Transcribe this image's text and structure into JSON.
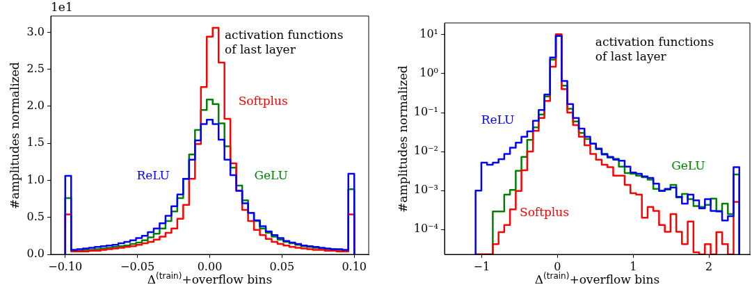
{
  "chart_data": [
    {
      "type": "histogram",
      "xlabel": "Δ$^{(train)}$+overflow bins",
      "ylabel": "#amplitudes normalized",
      "annotations": [
        "1e1",
        "activation functions of last layer"
      ],
      "bins": [
        -0.1,
        -0.09592,
        -0.09184,
        -0.08776,
        -0.08367,
        -0.07959,
        -0.07551,
        -0.07143,
        -0.06735,
        -0.06327,
        -0.05918,
        -0.0551,
        -0.05102,
        -0.04694,
        -0.04286,
        -0.03878,
        -0.03469,
        -0.03061,
        -0.02653,
        -0.02245,
        -0.01837,
        -0.01429,
        -0.0102,
        -0.00612,
        -0.00204,
        0.00204,
        0.00612,
        0.0102,
        0.01429,
        0.01837,
        0.02245,
        0.02653,
        0.03061,
        0.03469,
        0.03878,
        0.04286,
        0.04694,
        0.05102,
        0.0551,
        0.05918,
        0.06327,
        0.06735,
        0.07143,
        0.07551,
        0.07959,
        0.08367,
        0.08776,
        0.09184,
        0.09592,
        0.1
      ],
      "series": [
        {
          "name": "ReLU",
          "color": "#0000ff",
          "values": [
            1.06,
            0.06,
            0.07,
            0.08,
            0.09,
            0.1,
            0.11,
            0.12,
            0.13,
            0.15,
            0.17,
            0.19,
            0.22,
            0.25,
            0.3,
            0.35,
            0.42,
            0.52,
            0.65,
            0.81,
            1.02,
            1.28,
            1.54,
            1.76,
            1.82,
            1.76,
            1.55,
            1.28,
            1.07,
            0.86,
            0.69,
            0.56,
            0.46,
            0.38,
            0.31,
            0.26,
            0.22,
            0.18,
            0.16,
            0.14,
            0.12,
            0.11,
            0.1,
            0.09,
            0.08,
            0.07,
            0.07,
            0.06,
            1.09
          ]
        },
        {
          "name": "Softplus",
          "color": "#ff0000",
          "values": [
            0.54,
            0.04,
            0.04,
            0.04,
            0.05,
            0.05,
            0.06,
            0.07,
            0.08,
            0.09,
            0.1,
            0.11,
            0.13,
            0.15,
            0.17,
            0.2,
            0.24,
            0.29,
            0.35,
            0.48,
            0.67,
            1.02,
            1.49,
            2.26,
            2.94,
            3.06,
            2.59,
            1.83,
            1.23,
            0.86,
            0.6,
            0.45,
            0.33,
            0.26,
            0.21,
            0.17,
            0.14,
            0.12,
            0.1,
            0.09,
            0.08,
            0.07,
            0.06,
            0.06,
            0.05,
            0.05,
            0.04,
            0.04,
            0.54
          ]
        },
        {
          "name": "GeLU",
          "color": "#008000",
          "values": [
            0.76,
            0.05,
            0.05,
            0.06,
            0.06,
            0.07,
            0.08,
            0.09,
            0.1,
            0.11,
            0.12,
            0.14,
            0.16,
            0.19,
            0.23,
            0.28,
            0.35,
            0.45,
            0.58,
            0.76,
            1.02,
            1.35,
            1.68,
            1.95,
            2.09,
            2.03,
            1.77,
            1.46,
            1.17,
            0.93,
            0.73,
            0.56,
            0.45,
            0.35,
            0.29,
            0.24,
            0.2,
            0.17,
            0.15,
            0.13,
            0.11,
            0.1,
            0.09,
            0.08,
            0.07,
            0.07,
            0.06,
            0.05,
            0.88
          ]
        }
      ],
      "xlim": [
        -0.11,
        0.11
      ],
      "xticks": [
        {
          "value": -0.1,
          "label": "−0.10"
        },
        {
          "value": -0.05,
          "label": "−0.05"
        },
        {
          "value": 0,
          "label": "0.00"
        },
        {
          "value": 0.05,
          "label": "0.05"
        },
        {
          "value": 0.1,
          "label": "0.10"
        }
      ],
      "ylim": [
        0,
        3.22
      ],
      "yticks": [
        {
          "value": 0,
          "label": "0.0"
        },
        {
          "value": 0.5,
          "label": "0.5"
        },
        {
          "value": 1,
          "label": "1.0"
        },
        {
          "value": 1.5,
          "label": "1.5"
        },
        {
          "value": 2,
          "label": "2.0"
        },
        {
          "value": 2.5,
          "label": "2.5"
        },
        {
          "value": 3,
          "label": "3.0"
        }
      ],
      "legend": false
    },
    {
      "type": "histogram",
      "xlabel": "Δ$^{(train)}$+overflow bins",
      "ylabel": "#amplitudes normalized",
      "annotations": [
        "activation functions of last layer"
      ],
      "bins": [
        -1.08,
        -1.004,
        -0.929,
        -0.853,
        -0.777,
        -0.702,
        -0.626,
        -0.55,
        -0.475,
        -0.399,
        -0.323,
        -0.248,
        -0.172,
        -0.097,
        -0.021,
        0.055,
        0.13,
        0.206,
        0.282,
        0.357,
        0.433,
        0.509,
        0.584,
        0.66,
        0.736,
        0.811,
        0.887,
        0.963,
        1.038,
        1.114,
        1.19,
        1.265,
        1.341,
        1.417,
        1.492,
        1.568,
        1.643,
        1.719,
        1.795,
        1.87,
        1.946,
        2.022,
        2.097,
        2.173,
        2.249,
        2.324,
        2.4
      ],
      "series": [
        {
          "name": "ReLU",
          "color": "#0000ff",
          "values": [
            0.001,
            0.0052,
            0.0046,
            0.0052,
            0.0064,
            0.0087,
            0.0126,
            0.017,
            0.024,
            0.033,
            0.062,
            0.117,
            0.29,
            2.6,
            9.3,
            0.65,
            0.166,
            0.073,
            0.039,
            0.024,
            0.016,
            0.012,
            0.0084,
            0.0073,
            0.0062,
            0.0058,
            0.0041,
            0.0029,
            0.0027,
            0.0023,
            0.0021,
            0.0015,
            0.00098,
            0.0011,
            0.0012,
            0.00069,
            0.00046,
            0.00079,
            0.00056,
            0.00035,
            0.0006,
            0.0003,
            0.00029,
            0.00017,
            0.00022,
            0.004
          ]
        },
        {
          "name": "Softplus",
          "color": "#ff0000",
          "values": [
            null,
            null,
            null,
            4.2e-05,
            8.6e-05,
            0.00013,
            0.00033,
            0.00098,
            0.0033,
            0.01,
            0.034,
            0.073,
            0.2,
            1.5,
            10.3,
            0.4,
            0.1,
            0.048,
            0.024,
            0.0145,
            0.0087,
            0.0062,
            0.0046,
            0.004,
            0.0024,
            0.0024,
            0.0014,
            0.00085,
            0.00079,
            0.0002,
            0.00038,
            0.0003,
            0.00013,
            8.7e-05,
            0.00025,
            8.7e-05,
            4.2e-05,
            0.00016,
            2.6e-05,
            null,
            4.2e-05,
            null,
            8.6e-05,
            4.2e-05,
            null,
            0.00051
          ]
        },
        {
          "name": "GeLU",
          "color": "#008000",
          "values": [
            null,
            null,
            null,
            0.00029,
            0.00029,
            0.00079,
            0.00104,
            0.0032,
            0.0073,
            0.02,
            0.042,
            0.089,
            0.26,
            2.3,
            9.7,
            0.49,
            0.126,
            0.059,
            0.03,
            0.021,
            0.016,
            0.0115,
            0.0088,
            0.007,
            0.0065,
            0.0041,
            0.0028,
            0.0027,
            0.0024,
            0.0022,
            0.0019,
            0.0011,
            0.001,
            0.00106,
            0.0014,
            0.00067,
            0.00082,
            0.0006,
            0.0004,
            0.00038,
            0.00043,
            0.00062,
            0.0003,
            0.00046,
            0.00025,
            0.0026
          ]
        }
      ],
      "xlim": [
        -1.49,
        2.54
      ],
      "xticks": [
        {
          "value": -1,
          "label": "−1"
        },
        0,
        1,
        2
      ],
      "ylim": [
        2.3e-05,
        20
      ],
      "yticks": [
        {
          "value": 10,
          "label": "10¹"
        },
        {
          "value": 1,
          "label": "10⁰"
        },
        {
          "value": 0.1,
          "label": "10⁻¹"
        },
        {
          "value": 0.01,
          "label": "10⁻²"
        },
        {
          "value": 0.001,
          "label": "10⁻³"
        },
        {
          "value": 0.0001,
          "label": "10⁻⁴"
        }
      ],
      "log": true,
      "legend": false
    }
  ]
}
